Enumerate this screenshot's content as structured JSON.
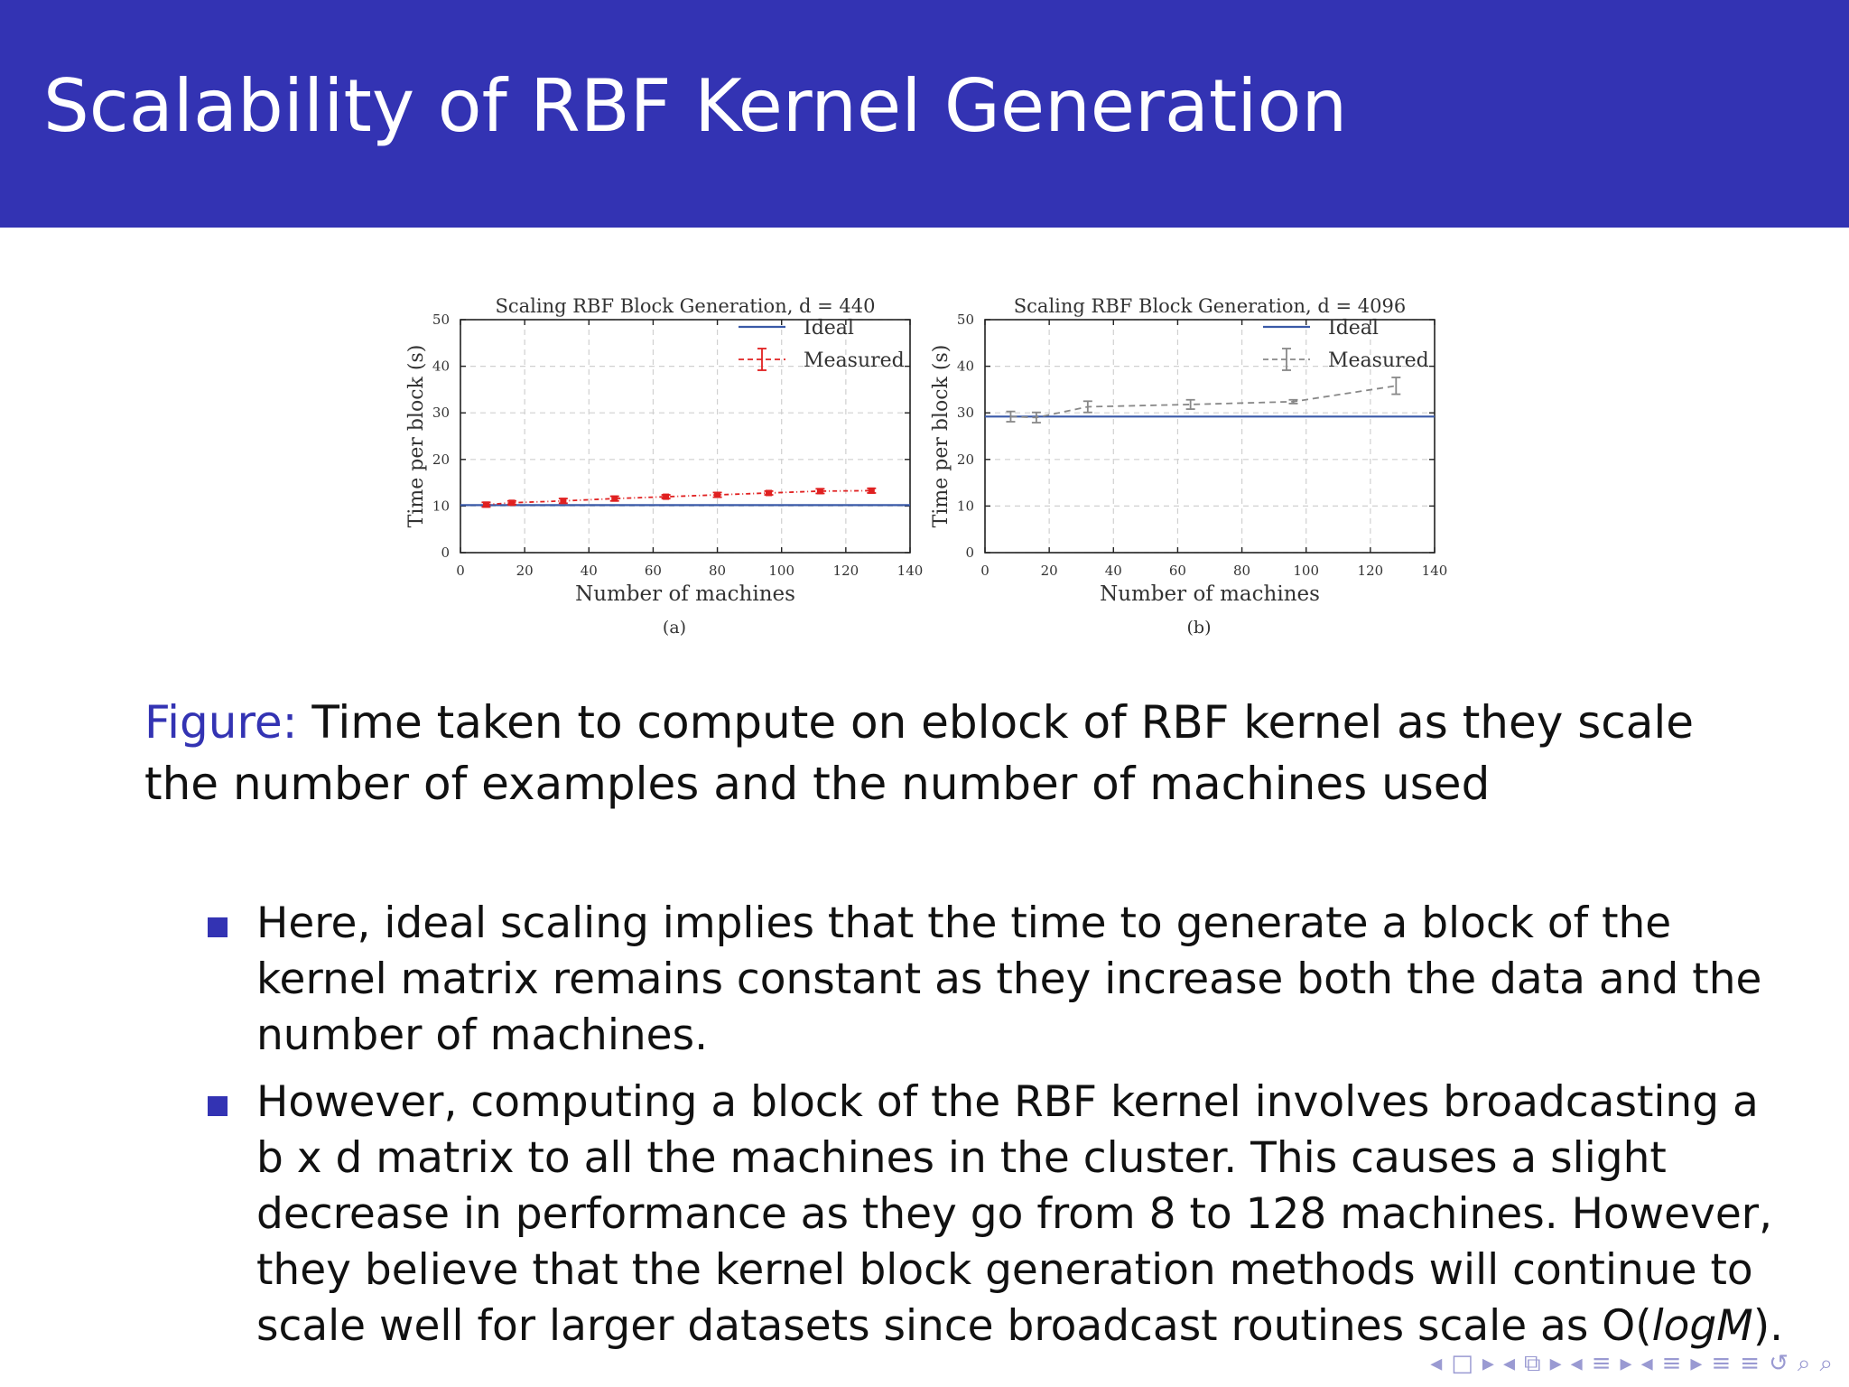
{
  "slide": {
    "title": "Scalability of RBF Kernel Generation"
  },
  "colors": {
    "header_bg": "#3333b3",
    "ideal_line": "#3a5aa8",
    "measured_a": "#e02020",
    "measured_b": "#888888",
    "bullet": "#3333b3"
  },
  "chart_data": [
    {
      "type": "line",
      "title": "Scaling RBF Block Generation, d = 440",
      "xlabel": "Number of machines",
      "ylabel": "Time per block (s)",
      "panel_label": "(a)",
      "xlim": [
        0,
        140
      ],
      "ylim": [
        0,
        50
      ],
      "xticks": [
        0,
        20,
        40,
        60,
        80,
        100,
        120,
        140
      ],
      "yticks": [
        0,
        10,
        20,
        30,
        40,
        50
      ],
      "grid": true,
      "legend_position": "top-right",
      "series": [
        {
          "name": "Ideal",
          "style": "solid",
          "x": [
            0,
            140
          ],
          "y": [
            10.2,
            10.2
          ]
        },
        {
          "name": "Measured",
          "style": "dashed-errorbar",
          "x": [
            8,
            16,
            32,
            48,
            64,
            80,
            96,
            112,
            128
          ],
          "y": [
            10.3,
            10.7,
            11.1,
            11.6,
            12.0,
            12.4,
            12.8,
            13.2,
            13.3
          ],
          "err": [
            0.5,
            0.4,
            0.5,
            0.5,
            0.4,
            0.5,
            0.4,
            0.5,
            0.5
          ]
        }
      ]
    },
    {
      "type": "line",
      "title": "Scaling RBF Block Generation, d = 4096",
      "xlabel": "Number of machines",
      "ylabel": "Time per block (s)",
      "panel_label": "(b)",
      "xlim": [
        0,
        140
      ],
      "ylim": [
        0,
        50
      ],
      "xticks": [
        0,
        20,
        40,
        60,
        80,
        100,
        120,
        140
      ],
      "yticks": [
        0,
        10,
        20,
        30,
        40,
        50
      ],
      "grid": true,
      "legend_position": "top-right",
      "series": [
        {
          "name": "Ideal",
          "style": "solid",
          "x": [
            0,
            140
          ],
          "y": [
            29.2,
            29.2
          ]
        },
        {
          "name": "Measured",
          "style": "dashed-errorbar",
          "x": [
            8,
            16,
            32,
            64,
            96,
            128
          ],
          "y": [
            29.2,
            29.0,
            31.3,
            31.8,
            32.4,
            35.8
          ],
          "err": [
            1.1,
            1.1,
            1.2,
            1.0,
            0.4,
            1.8
          ]
        }
      ]
    }
  ],
  "caption": {
    "label": "Figure:",
    "text": " Time taken to compute on eblock of RBF kernel as they scale the number of examples and the number of machines used"
  },
  "bullets": [
    {
      "text": "Here, ideal scaling implies that the time to generate a block of the kernel matrix remains constant as they increase both the data and the number of machines."
    },
    {
      "text_before": "However, computing a block of the RBF kernel involves broadcasting a b x d matrix to all the machines in the cluster.  This causes a slight decrease in performance as they go from 8 to 128 machines. However, they believe that the kernel block generation methods will continue to scale well for larger datasets since broadcast routines scale as O(",
      "math": "logM",
      "text_after": ")."
    }
  ],
  "nav_symbols": [
    "◂",
    "□",
    "▸",
    "◂",
    "⧉",
    "▸",
    "◂",
    "≡",
    "▸",
    "◂",
    "≡",
    "▸",
    "≡",
    "≡",
    "↺",
    "⌕",
    "⌕"
  ]
}
